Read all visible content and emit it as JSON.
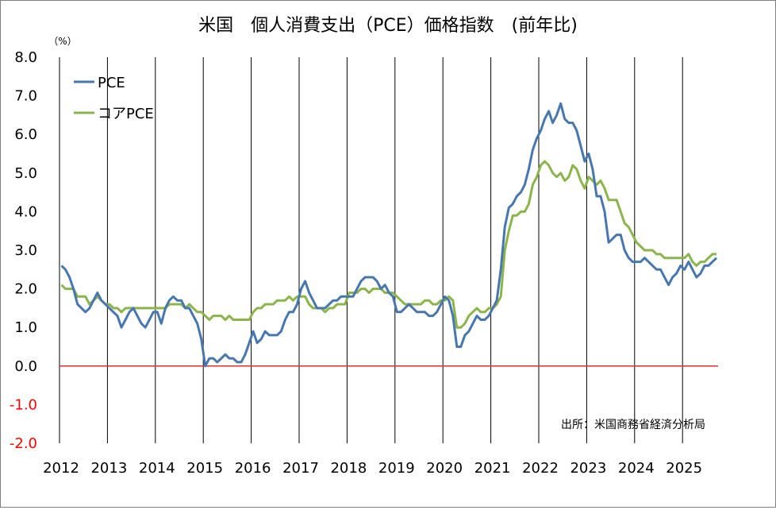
{
  "chart_data": {
    "type": "line",
    "title": "米国　個人消費支出（PCE）価格指数　(前年比)",
    "unit_label": "（%）",
    "source_note": "出所：米国商務省経済分析局",
    "ylim": [
      -2.0,
      8.0
    ],
    "y_ticks": [
      "8.0",
      "7.0",
      "6.0",
      "5.0",
      "4.0",
      "3.0",
      "2.0",
      "1.0",
      "0.0",
      "-1.0",
      "-2.0"
    ],
    "y_tick_values": [
      8,
      7,
      6,
      5,
      4,
      3,
      2,
      1,
      0,
      -1,
      -2
    ],
    "x_ticks": [
      "2012",
      "2013",
      "2014",
      "2015",
      "2016",
      "2017",
      "2018",
      "2019",
      "2020",
      "2021",
      "2022",
      "2023",
      "2024",
      "2025"
    ],
    "x_range": [
      "2012-01",
      "2025-12"
    ],
    "grid": "vertical at year boundaries",
    "legend_position": "top-left",
    "reference_line": {
      "y": 0,
      "color": "#e03030"
    },
    "colors": {
      "pce": "#4677b0",
      "core": "#8bb54a",
      "negative_ticks": "#ff0000"
    },
    "series": [
      {
        "name": "PCE",
        "color": "#4677b0",
        "start": "2012-01",
        "values": [
          2.6,
          2.5,
          2.3,
          2.0,
          1.6,
          1.5,
          1.4,
          1.5,
          1.7,
          1.9,
          1.7,
          1.6,
          1.5,
          1.4,
          1.3,
          1.0,
          1.2,
          1.4,
          1.5,
          1.3,
          1.1,
          1.0,
          1.2,
          1.4,
          1.4,
          1.1,
          1.5,
          1.7,
          1.8,
          1.7,
          1.7,
          1.5,
          1.5,
          1.3,
          1.1,
          0.7,
          0.0,
          0.2,
          0.2,
          0.1,
          0.2,
          0.3,
          0.2,
          0.2,
          0.1,
          0.1,
          0.3,
          0.6,
          0.9,
          0.6,
          0.7,
          0.9,
          0.8,
          0.8,
          0.8,
          0.9,
          1.2,
          1.4,
          1.4,
          1.6,
          2.0,
          2.2,
          1.9,
          1.7,
          1.5,
          1.5,
          1.5,
          1.6,
          1.7,
          1.7,
          1.8,
          1.8,
          1.8,
          1.8,
          2.0,
          2.2,
          2.3,
          2.3,
          2.3,
          2.2,
          2.0,
          2.1,
          1.9,
          1.8,
          1.4,
          1.4,
          1.5,
          1.6,
          1.5,
          1.4,
          1.4,
          1.4,
          1.3,
          1.3,
          1.4,
          1.6,
          1.8,
          1.7,
          1.3,
          0.5,
          0.5,
          0.8,
          0.9,
          1.1,
          1.3,
          1.2,
          1.2,
          1.3,
          1.5,
          1.7,
          2.5,
          3.6,
          4.1,
          4.2,
          4.4,
          4.5,
          4.7,
          5.1,
          5.6,
          5.9,
          6.1,
          6.4,
          6.6,
          6.3,
          6.5,
          6.8,
          6.4,
          6.3,
          6.3,
          6.1,
          5.7,
          5.3,
          5.5,
          5.1,
          4.4,
          4.4,
          4.0,
          3.2,
          3.3,
          3.4,
          3.4,
          3.0,
          2.8,
          2.7,
          2.7,
          2.7,
          2.8,
          2.7,
          2.6,
          2.5,
          2.5,
          2.3,
          2.1,
          2.3,
          2.4,
          2.6,
          2.5,
          2.7,
          2.5,
          2.3,
          2.4,
          2.6,
          2.6,
          2.7,
          2.8
        ]
      },
      {
        "name": "コアPCE",
        "color": "#8bb54a",
        "start": "2012-01",
        "values": [
          2.1,
          2.0,
          2.0,
          2.0,
          1.8,
          1.8,
          1.8,
          1.6,
          1.7,
          1.8,
          1.7,
          1.6,
          1.6,
          1.5,
          1.5,
          1.4,
          1.5,
          1.5,
          1.5,
          1.5,
          1.5,
          1.5,
          1.5,
          1.5,
          1.5,
          1.5,
          1.5,
          1.6,
          1.6,
          1.6,
          1.6,
          1.5,
          1.6,
          1.5,
          1.4,
          1.4,
          1.3,
          1.2,
          1.3,
          1.3,
          1.3,
          1.2,
          1.3,
          1.2,
          1.2,
          1.2,
          1.2,
          1.2,
          1.4,
          1.5,
          1.5,
          1.6,
          1.6,
          1.6,
          1.7,
          1.7,
          1.7,
          1.8,
          1.7,
          1.8,
          1.8,
          1.8,
          1.6,
          1.5,
          1.5,
          1.5,
          1.4,
          1.5,
          1.5,
          1.6,
          1.6,
          1.6,
          1.9,
          1.9,
          1.9,
          2.0,
          2.0,
          1.9,
          2.0,
          2.0,
          2.0,
          1.9,
          1.9,
          1.9,
          1.8,
          1.7,
          1.6,
          1.6,
          1.6,
          1.6,
          1.6,
          1.7,
          1.7,
          1.6,
          1.6,
          1.7,
          1.7,
          1.8,
          1.7,
          1.0,
          1.0,
          1.1,
          1.3,
          1.4,
          1.5,
          1.4,
          1.4,
          1.5,
          1.5,
          1.6,
          1.8,
          3.0,
          3.5,
          3.9,
          3.9,
          4.0,
          4.0,
          4.2,
          4.7,
          4.9,
          5.2,
          5.3,
          5.2,
          5.0,
          4.9,
          5.0,
          4.8,
          4.9,
          5.2,
          5.1,
          4.8,
          4.6,
          4.9,
          4.8,
          4.7,
          4.8,
          4.6,
          4.3,
          4.3,
          4.3,
          4.0,
          3.7,
          3.6,
          3.4,
          3.2,
          3.1,
          3.0,
          3.0,
          3.0,
          2.9,
          2.9,
          2.8,
          2.8,
          2.8,
          2.8,
          2.8,
          2.8,
          2.9,
          2.7,
          2.6,
          2.7,
          2.7,
          2.8,
          2.9,
          2.9
        ]
      }
    ]
  }
}
